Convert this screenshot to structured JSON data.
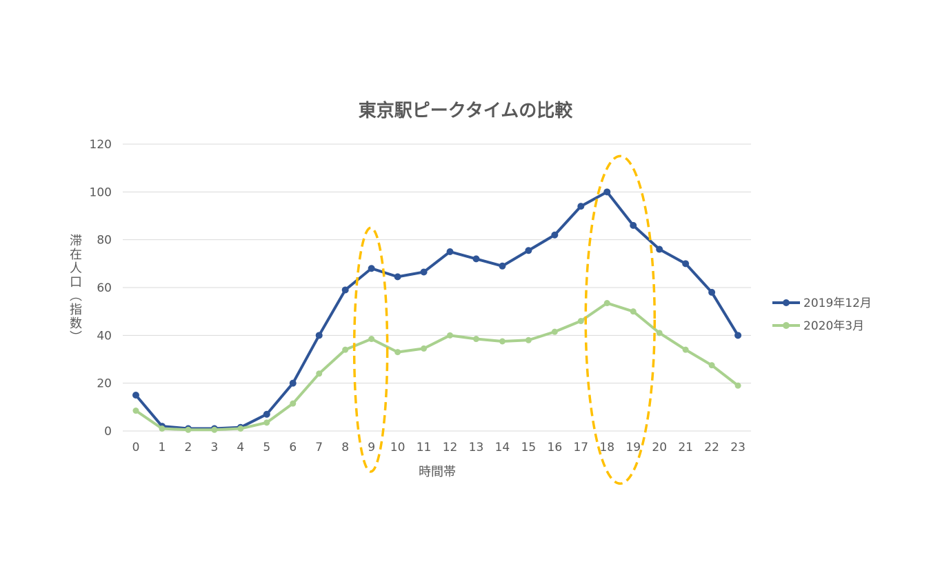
{
  "chart_data": {
    "type": "line",
    "title": "東京駅ピークタイムの比較",
    "xlabel": "時間帯",
    "ylabel": "滞在人口（指数）",
    "x": [
      "0",
      "1",
      "2",
      "3",
      "4",
      "5",
      "6",
      "7",
      "8",
      "9",
      "10",
      "11",
      "12",
      "13",
      "14",
      "15",
      "16",
      "17",
      "18",
      "19",
      "20",
      "21",
      "22",
      "23"
    ],
    "ylim": [
      0,
      120
    ],
    "yticks": [
      "0",
      "20",
      "40",
      "60",
      "80",
      "100",
      "120"
    ],
    "grid": true,
    "legend_position": "right",
    "series": [
      {
        "name": "2019年12月",
        "color": "#2f5597",
        "values": [
          15,
          2,
          1,
          1,
          1.5,
          7,
          20,
          40,
          59,
          68,
          64.5,
          66.5,
          75,
          72,
          69,
          75.5,
          82,
          94,
          100,
          86,
          76,
          70,
          58,
          40
        ]
      },
      {
        "name": "2020年3月",
        "color": "#a9d18e",
        "values": [
          8.5,
          1,
          0.5,
          0.5,
          1,
          3.5,
          11.5,
          24,
          34,
          38.5,
          33,
          34.5,
          40,
          38.5,
          37.5,
          38,
          41.5,
          46,
          53.5,
          50,
          41,
          34,
          27.5,
          19
        ]
      }
    ],
    "annotations": [
      {
        "type": "dashed-ellipse",
        "color": "#ffc000",
        "x": "9",
        "y_range": [
          -17,
          85
        ]
      },
      {
        "type": "dashed-ellipse",
        "color": "#ffc000",
        "x": "18-19",
        "y_range": [
          -22,
          115
        ]
      }
    ]
  }
}
